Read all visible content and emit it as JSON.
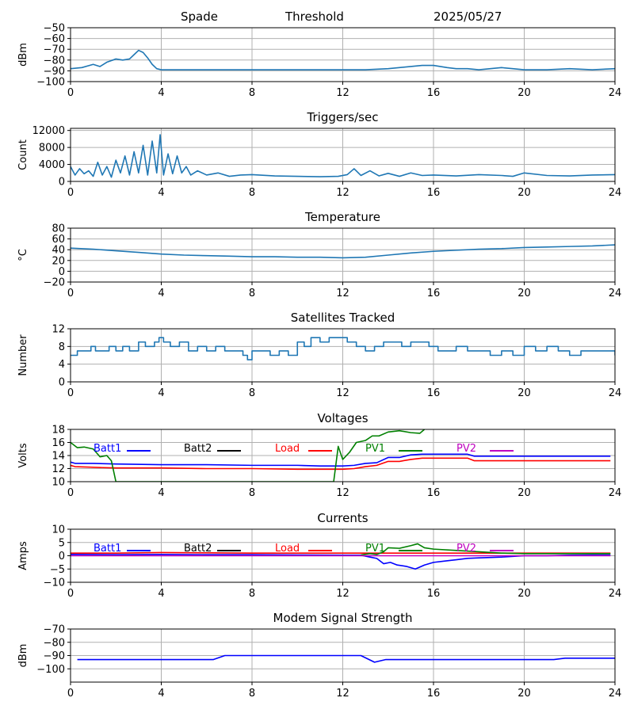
{
  "header": {
    "station": "Spade",
    "label": "Threshold",
    "date": "2025/05/27"
  },
  "colors": {
    "default_line": "#1f77b4",
    "batt1": "#0000ff",
    "batt2": "#000000",
    "load": "#ff0000",
    "pv1": "#008000",
    "pv2": "#bf00bf"
  },
  "chart_data": [
    {
      "type": "line",
      "title": "",
      "ylabel": "dBm",
      "xlim": [
        0,
        24
      ],
      "ylim": [
        -100,
        -50
      ],
      "xticks": [
        0,
        4,
        8,
        12,
        16,
        20,
        24
      ],
      "yticks": [
        -100,
        -90,
        -80,
        -70,
        -60,
        -50
      ],
      "grid": true,
      "series": [
        {
          "color": "#1f77b4",
          "x": [
            0,
            0.5,
            1,
            1.3,
            1.6,
            2,
            2.3,
            2.6,
            2.85,
            3.0,
            3.2,
            3.4,
            3.6,
            3.8,
            4.0,
            5,
            6,
            8,
            10,
            12,
            13,
            14,
            14.5,
            15,
            15.5,
            16,
            16.3,
            16.6,
            17,
            17.5,
            18,
            18.5,
            19,
            19.5,
            20,
            21,
            22,
            23,
            24
          ],
          "y": [
            -88,
            -87,
            -84,
            -86,
            -82,
            -79,
            -80,
            -79,
            -74,
            -71,
            -73,
            -78,
            -84,
            -88,
            -89,
            -89,
            -89,
            -89,
            -89,
            -89,
            -89,
            -88,
            -87,
            -86,
            -85,
            -85,
            -86,
            -87,
            -88,
            -88,
            -89,
            -88,
            -87,
            -88,
            -89,
            -89,
            -88,
            -89,
            -88
          ]
        }
      ]
    },
    {
      "type": "line",
      "title": "Triggers/sec",
      "ylabel": "Count",
      "xlim": [
        0,
        24
      ],
      "ylim": [
        0,
        12500
      ],
      "xticks": [
        0,
        4,
        8,
        12,
        16,
        20,
        24
      ],
      "yticks": [
        0,
        4000,
        8000,
        12000
      ],
      "grid": true,
      "series": [
        {
          "color": "#1f77b4",
          "x": [
            0,
            0.2,
            0.4,
            0.6,
            0.8,
            1.0,
            1.2,
            1.4,
            1.6,
            1.8,
            2.0,
            2.2,
            2.4,
            2.6,
            2.8,
            3.0,
            3.2,
            3.4,
            3.6,
            3.8,
            3.95,
            4.1,
            4.3,
            4.5,
            4.7,
            4.9,
            5.1,
            5.3,
            5.6,
            6.0,
            6.5,
            7.0,
            7.5,
            8.0,
            9.0,
            10.0,
            11.0,
            11.8,
            12.2,
            12.5,
            12.8,
            13.2,
            13.6,
            14.0,
            14.5,
            15.0,
            15.5,
            16.0,
            17.0,
            18.0,
            19.0,
            19.5,
            20.0,
            21.0,
            22.0,
            23.0,
            24.0
          ],
          "y": [
            3500,
            1500,
            3000,
            1800,
            2500,
            1200,
            4500,
            1500,
            3500,
            1000,
            5000,
            2000,
            6000,
            1500,
            7000,
            2000,
            8500,
            1500,
            9500,
            2000,
            11000,
            1500,
            6500,
            1800,
            6000,
            2000,
            3500,
            1500,
            2500,
            1500,
            2000,
            1200,
            1500,
            1600,
            1300,
            1200,
            1100,
            1200,
            1600,
            3000,
            1400,
            2500,
            1300,
            1900,
            1200,
            2000,
            1400,
            1500,
            1300,
            1600,
            1400,
            1200,
            2000,
            1400,
            1300,
            1500,
            1600
          ]
        }
      ]
    },
    {
      "type": "line",
      "title": "Temperature",
      "ylabel": "°C",
      "xlim": [
        0,
        24
      ],
      "ylim": [
        -20,
        80
      ],
      "xticks": [
        0,
        4,
        8,
        12,
        16,
        20,
        24
      ],
      "yticks": [
        -20,
        0,
        20,
        40,
        60,
        80
      ],
      "grid": true,
      "series": [
        {
          "color": "#1f77b4",
          "x": [
            0,
            1,
            2,
            3,
            4,
            5,
            6,
            7,
            8,
            9,
            10,
            11,
            12,
            13,
            14,
            15,
            16,
            17,
            18,
            19,
            20,
            21,
            22,
            23,
            24
          ],
          "y": [
            43,
            41,
            38,
            35,
            32,
            30,
            29,
            28,
            27,
            27,
            26,
            26,
            25,
            26,
            30,
            34,
            37,
            39,
            41,
            42,
            44,
            45,
            46,
            47,
            49
          ]
        }
      ]
    },
    {
      "type": "line",
      "title": "Satellites Tracked",
      "ylabel": "Number",
      "xlim": [
        0,
        24
      ],
      "ylim": [
        0,
        12
      ],
      "xticks": [
        0,
        4,
        8,
        12,
        16,
        20,
        24
      ],
      "yticks": [
        0,
        4,
        8,
        12
      ],
      "grid": true,
      "step": true,
      "series": [
        {
          "color": "#1f77b4",
          "x": [
            0,
            0.3,
            0.6,
            0.9,
            1.1,
            1.4,
            1.7,
            2.0,
            2.3,
            2.6,
            3.0,
            3.3,
            3.7,
            3.9,
            4.1,
            4.4,
            4.8,
            5.2,
            5.6,
            6.0,
            6.4,
            6.8,
            7.2,
            7.6,
            7.8,
            8.0,
            8.4,
            8.8,
            9.2,
            9.6,
            10.0,
            10.3,
            10.6,
            11.0,
            11.4,
            11.8,
            12.2,
            12.6,
            13.0,
            13.4,
            13.8,
            14.2,
            14.6,
            15.0,
            15.4,
            15.8,
            16.2,
            16.6,
            17.0,
            17.5,
            18.0,
            18.5,
            19.0,
            19.5,
            20.0,
            20.5,
            21.0,
            21.5,
            22.0,
            22.5,
            23.0,
            23.5,
            24.0
          ],
          "y": [
            6,
            7,
            7,
            8,
            7,
            7,
            8,
            7,
            8,
            7,
            9,
            8,
            9,
            10,
            9,
            8,
            9,
            7,
            8,
            7,
            8,
            7,
            7,
            6,
            5,
            7,
            7,
            6,
            7,
            6,
            9,
            8,
            10,
            9,
            10,
            10,
            9,
            8,
            7,
            8,
            9,
            9,
            8,
            9,
            9,
            8,
            7,
            7,
            8,
            7,
            7,
            6,
            7,
            6,
            8,
            7,
            8,
            7,
            6,
            7,
            7,
            7,
            6
          ]
        }
      ]
    },
    {
      "type": "line",
      "title": "Voltages",
      "ylabel": "Volts",
      "xlim": [
        0,
        24
      ],
      "ylim": [
        10,
        18
      ],
      "xticks": [
        0,
        4,
        8,
        12,
        16,
        20,
        24
      ],
      "yticks": [
        10,
        12,
        14,
        16,
        18
      ],
      "grid": true,
      "legend": "inline-top",
      "series": [
        {
          "name": "Batt1",
          "color": "#0000ff",
          "x": [
            0,
            0.2,
            1,
            2,
            4,
            6,
            8,
            10,
            11,
            12,
            12.5,
            13,
            13.5,
            14,
            14.5,
            15,
            15.5,
            16,
            17,
            17.5,
            17.8,
            18,
            19,
            20,
            22,
            23.8
          ],
          "y": [
            13.0,
            12.8,
            12.8,
            12.7,
            12.6,
            12.6,
            12.5,
            12.5,
            12.4,
            12.4,
            12.5,
            12.8,
            12.9,
            13.7,
            13.7,
            14.1,
            14.2,
            14.2,
            14.2,
            14.2,
            13.9,
            13.9,
            13.9,
            13.9,
            13.9,
            13.9
          ]
        },
        {
          "name": "Batt2",
          "color": "#000000",
          "x": [],
          "y": []
        },
        {
          "name": "Load",
          "color": "#ff0000",
          "x": [
            0,
            0.2,
            1,
            2,
            4,
            6,
            8,
            10,
            11,
            12,
            12.5,
            13,
            13.5,
            14,
            14.5,
            15,
            15.5,
            16,
            17,
            17.5,
            17.8,
            18,
            19,
            20,
            22,
            23.8
          ],
          "y": [
            12.5,
            12.3,
            12.2,
            12.1,
            12.1,
            12.0,
            12.0,
            11.9,
            11.9,
            11.9,
            12.0,
            12.3,
            12.5,
            13.1,
            13.1,
            13.4,
            13.6,
            13.6,
            13.6,
            13.6,
            13.2,
            13.2,
            13.2,
            13.2,
            13.2,
            13.2
          ]
        },
        {
          "name": "PV1",
          "color": "#008000",
          "x": [
            0,
            0.3,
            0.6,
            1.0,
            1.3,
            1.6,
            1.8,
            2.0,
            11.6,
            11.8,
            12.0,
            12.3,
            12.6,
            13.0,
            13.3,
            13.6,
            14.0,
            14.5,
            15.0,
            15.4,
            15.6
          ],
          "y": [
            16.0,
            15.2,
            15.3,
            15.0,
            13.8,
            14.0,
            13.2,
            10.0,
            10.0,
            15.4,
            13.4,
            14.5,
            16.0,
            16.3,
            17.0,
            17.0,
            17.6,
            17.8,
            17.5,
            17.4,
            18.0
          ]
        },
        {
          "name": "PV2",
          "color": "#bf00bf",
          "x": [],
          "y": []
        }
      ]
    },
    {
      "type": "line",
      "title": "Currents",
      "ylabel": "Amps",
      "xlim": [
        0,
        24
      ],
      "ylim": [
        -10,
        10
      ],
      "xticks": [
        0,
        4,
        8,
        12,
        16,
        20,
        24
      ],
      "yticks": [
        -10,
        -5,
        0,
        5,
        10
      ],
      "grid": true,
      "legend": "inline-top",
      "series": [
        {
          "name": "Batt1",
          "color": "#0000ff",
          "x": [
            0,
            2,
            4,
            6,
            8,
            10,
            12,
            12.8,
            13.2,
            13.5,
            13.8,
            14.1,
            14.4,
            14.8,
            15.2,
            15.6,
            16.0,
            16.5,
            17.0,
            17.5,
            18.0,
            19.0,
            20.0,
            21.0,
            22.0,
            23.0,
            23.8
          ],
          "y": [
            0.5,
            0.4,
            0.5,
            0.4,
            0.4,
            0.3,
            0.2,
            0.2,
            -0.5,
            -1.0,
            -3.0,
            -2.5,
            -3.5,
            -4.0,
            -5.0,
            -3.5,
            -2.5,
            -2.0,
            -1.5,
            -1.0,
            -0.8,
            -0.5,
            0,
            0,
            0.2,
            0.3,
            0.3
          ]
        },
        {
          "name": "Batt2",
          "color": "#000000",
          "x": [],
          "y": []
        },
        {
          "name": "Load",
          "color": "#ff0000",
          "x": [
            0,
            2,
            4,
            6,
            8,
            10,
            12,
            14,
            16,
            18,
            20,
            22,
            23.8
          ],
          "y": [
            1.0,
            1.0,
            1.2,
            1.1,
            1.0,
            1.0,
            1.0,
            1.0,
            1.0,
            1.0,
            1.0,
            1.0,
            1.0
          ]
        },
        {
          "name": "PV1",
          "color": "#008000",
          "x": [
            12.8,
            13.2,
            13.5,
            13.8,
            14.0,
            14.5,
            15.0,
            15.3,
            15.6,
            16.0,
            17.0,
            18.0,
            19.0,
            20.0,
            22.0,
            23.8
          ],
          "y": [
            0.3,
            0.8,
            0.5,
            1.5,
            3.0,
            2.8,
            3.8,
            4.5,
            3.0,
            2.5,
            2.0,
            1.5,
            1.0,
            0.8,
            0.8,
            0.8
          ]
        },
        {
          "name": "PV2",
          "color": "#bf00bf",
          "x": [
            0,
            4,
            8,
            12,
            16,
            20,
            23.8
          ],
          "y": [
            0,
            0,
            0,
            0,
            0,
            0,
            0
          ]
        }
      ]
    },
    {
      "type": "line",
      "title": "Modem Signal Strength",
      "ylabel": "dBm",
      "xlim": [
        0,
        24
      ],
      "ylim": [
        -110,
        -70
      ],
      "xticks": [
        0,
        4,
        8,
        12,
        16,
        20,
        24
      ],
      "yticks": [
        -100,
        -90,
        -80,
        -70
      ],
      "grid": true,
      "series": [
        {
          "color": "#0000ff",
          "x": [
            0.3,
            6.3,
            6.8,
            12.8,
            13.4,
            13.9,
            21.3,
            21.8,
            24
          ],
          "y": [
            -93,
            -93,
            -90,
            -90,
            -95,
            -93,
            -93,
            -92,
            -92
          ]
        }
      ]
    }
  ]
}
